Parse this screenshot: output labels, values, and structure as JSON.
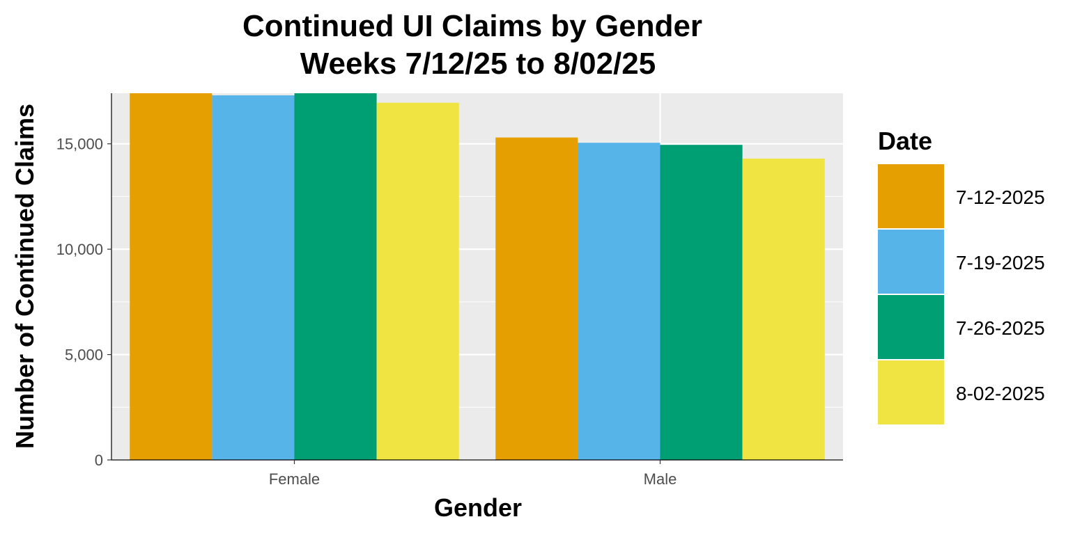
{
  "chart_data": {
    "type": "bar",
    "title_lines": [
      "Continued UI Claims by Gender",
      "Weeks  7/12/25 to 8/02/25"
    ],
    "xlabel": "Gender",
    "ylabel": "Number of Continued Claims",
    "categories": [
      "Female",
      "Male"
    ],
    "series": [
      {
        "name": "7-12-2025",
        "color": "#E69F00",
        "values": [
          17700,
          15300
        ]
      },
      {
        "name": "7-19-2025",
        "color": "#56B4E9",
        "values": [
          17300,
          15050
        ]
      },
      {
        "name": "7-26-2025",
        "color": "#009E73",
        "values": [
          17650,
          14950
        ]
      },
      {
        "name": "8-02-2025",
        "color": "#F0E442",
        "values": [
          16950,
          14300
        ]
      }
    ],
    "ylim": [
      0,
      17400
    ],
    "y_ticks": [
      0,
      5000,
      10000,
      15000
    ],
    "y_tick_labels": [
      "0",
      "5,000",
      "10,000",
      "15,000"
    ],
    "y_minor_ticks": [
      2500,
      7500,
      12500
    ],
    "grid": true,
    "panel_background": "#EBEBEB",
    "grid_color": "#FFFFFF",
    "legend": {
      "title": "Date",
      "position": "right"
    }
  }
}
